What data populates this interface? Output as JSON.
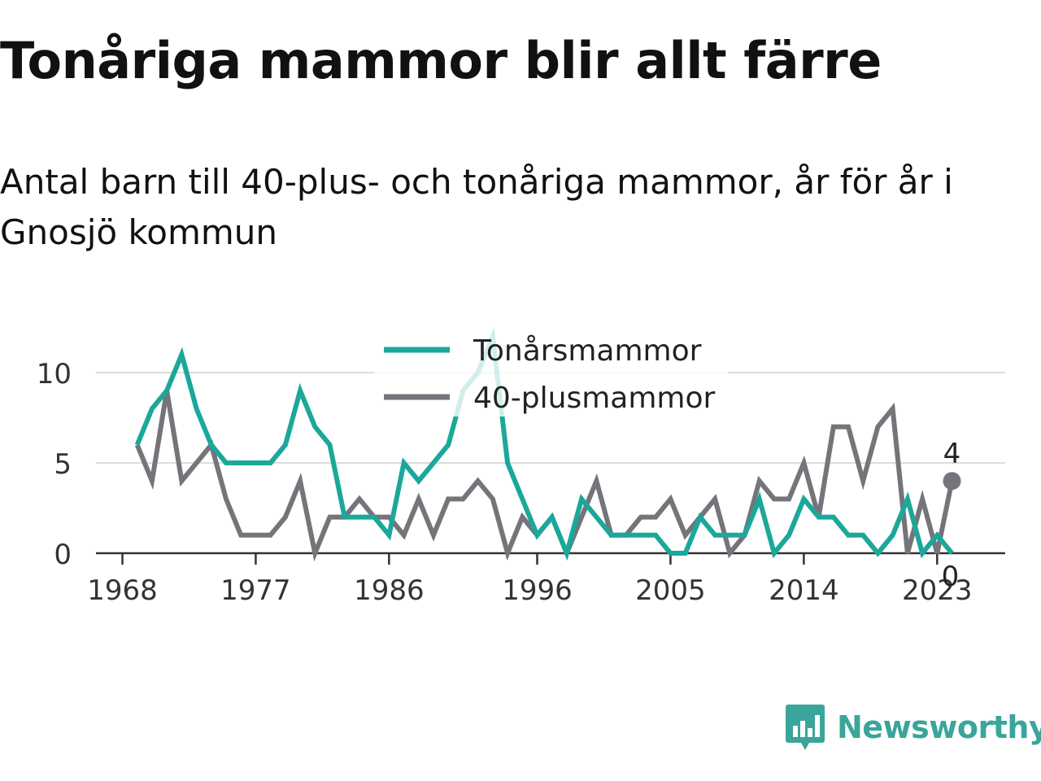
{
  "header": {
    "title": "Tonåriga mammor blir allt färre",
    "subtitle": "Antal barn till 40-plus- och tonåriga mammor, år för år i Gnosjö kommun"
  },
  "brand": {
    "name": "Newsworthy",
    "icon": "newsworthy-logo-icon",
    "color": "#3aa59a"
  },
  "chart_data": {
    "type": "line",
    "title": "",
    "xlabel": "",
    "ylabel": "",
    "xlim": [
      1968,
      2024
    ],
    "ylim": [
      0,
      12
    ],
    "x_ticks": [
      1968,
      1977,
      1986,
      1996,
      2005,
      2014,
      2023
    ],
    "y_ticks": [
      0,
      5,
      10
    ],
    "grid": "horizontal",
    "legend_placement": "top-center",
    "x": [
      1969,
      1970,
      1971,
      1972,
      1973,
      1974,
      1975,
      1976,
      1977,
      1978,
      1979,
      1980,
      1981,
      1982,
      1983,
      1984,
      1985,
      1986,
      1987,
      1988,
      1989,
      1990,
      1991,
      1992,
      1993,
      1994,
      1995,
      1996,
      1997,
      1998,
      1999,
      2000,
      2001,
      2002,
      2003,
      2004,
      2005,
      2006,
      2007,
      2008,
      2009,
      2010,
      2011,
      2012,
      2013,
      2014,
      2015,
      2016,
      2017,
      2018,
      2019,
      2020,
      2021,
      2022,
      2023,
      2024
    ],
    "series": [
      {
        "name": "Tonårsmammor",
        "color": "#1ba89a",
        "values": [
          6,
          8,
          9,
          11,
          8,
          6,
          5,
          5,
          5,
          5,
          6,
          9,
          7,
          6,
          2,
          2,
          2,
          1,
          5,
          4,
          5,
          6,
          9,
          10,
          12,
          5,
          3,
          1,
          2,
          0,
          3,
          2,
          1,
          1,
          1,
          1,
          0,
          0,
          2,
          1,
          1,
          1,
          3,
          0,
          1,
          3,
          2,
          2,
          1,
          1,
          0,
          1,
          3,
          0,
          1,
          0
        ],
        "end_label": "0"
      },
      {
        "name": "40-plusmammor",
        "color": "#75747a",
        "values": [
          6,
          4,
          9,
          4,
          5,
          6,
          3,
          1,
          1,
          1,
          2,
          4,
          0,
          2,
          2,
          3,
          2,
          2,
          1,
          3,
          1,
          3,
          3,
          4,
          3,
          0,
          2,
          1,
          2,
          0,
          2,
          4,
          1,
          1,
          2,
          2,
          3,
          1,
          2,
          3,
          0,
          1,
          4,
          3,
          3,
          5,
          2,
          7,
          7,
          4,
          7,
          8,
          0,
          3,
          0,
          4
        ],
        "end_label": "4"
      }
    ]
  }
}
